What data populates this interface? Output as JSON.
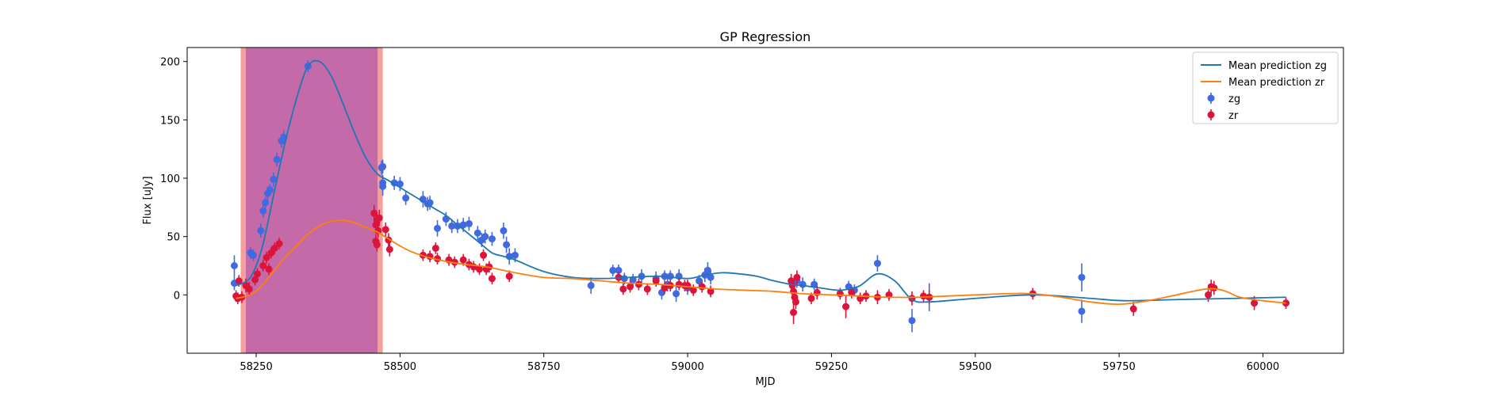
{
  "chart_data": {
    "type": "scatter",
    "title": "GP Regression",
    "xlabel": "MJD",
    "ylabel": "Flux [uJy]",
    "xlim": [
      58130,
      60140
    ],
    "ylim": [
      -50,
      212
    ],
    "xticks": [
      58250,
      58500,
      58750,
      59000,
      59250,
      59500,
      59750,
      60000
    ],
    "yticks": [
      0,
      50,
      100,
      150,
      200
    ],
    "legend_position": "top-right",
    "shaded_regions": [
      {
        "x0": 58223,
        "x1": 58470,
        "color": "#f4a09a"
      },
      {
        "x0": 58232,
        "x1": 58461,
        "color": "#c46aa8"
      }
    ],
    "series": [
      {
        "name": "Mean prediction zg",
        "kind": "line",
        "color": "#1f77b4",
        "x": [
          58215,
          58240,
          58260,
          58280,
          58300,
          58320,
          58340,
          58360,
          58380,
          58400,
          58420,
          58440,
          58460,
          58480,
          58500,
          58520,
          58540,
          58560,
          58580,
          58600,
          58620,
          58640,
          58660,
          58680,
          58700,
          58750,
          58800,
          58850,
          58900,
          58950,
          59000,
          59030,
          59060,
          59090,
          59120,
          59150,
          59180,
          59200,
          59230,
          59260,
          59280,
          59300,
          59330,
          59360,
          59390,
          59420,
          59500,
          59600,
          59700,
          59760,
          59850,
          59950,
          60040
        ],
        "y": [
          8,
          15,
          40,
          85,
          130,
          168,
          196,
          200,
          188,
          165,
          140,
          118,
          104,
          98,
          92,
          86,
          80,
          74,
          68,
          60,
          52,
          44,
          36,
          33,
          30,
          20,
          15,
          14,
          15,
          16,
          14,
          17,
          19,
          18,
          16,
          12,
          9,
          8,
          6,
          4,
          5,
          8,
          18,
          12,
          -4,
          -6,
          -3,
          0,
          -3,
          -5,
          -4,
          -3,
          -2
        ]
      },
      {
        "name": "Mean prediction zr",
        "kind": "line",
        "color": "#ff7f0e",
        "x": [
          58215,
          58240,
          58260,
          58280,
          58300,
          58320,
          58340,
          58360,
          58380,
          58400,
          58420,
          58440,
          58460,
          58480,
          58500,
          58520,
          58550,
          58600,
          58650,
          58700,
          58750,
          58800,
          58850,
          58900,
          58950,
          59000,
          59050,
          59100,
          59150,
          59200,
          59250,
          59300,
          59350,
          59400,
          59450,
          59500,
          59550,
          59600,
          59650,
          59700,
          59750,
          59800,
          59850,
          59900,
          59930,
          59960,
          60000,
          60040
        ],
        "y": [
          -3,
          0,
          8,
          20,
          32,
          42,
          52,
          59,
          63,
          64,
          62,
          58,
          54,
          48,
          42,
          37,
          32,
          27,
          24,
          19,
          15,
          14,
          12,
          10,
          9,
          7,
          5,
          4,
          3,
          1,
          0,
          -1,
          -2,
          -2,
          -1,
          0,
          1,
          1,
          -2,
          -6,
          -8,
          -5,
          0,
          5,
          4,
          -2,
          -5,
          -7
        ]
      },
      {
        "name": "zg",
        "kind": "errorbar",
        "color": "#4169e1",
        "points": [
          [
            58212,
            25,
            9
          ],
          [
            58212,
            10,
            6
          ],
          [
            58240,
            36,
            5
          ],
          [
            58245,
            34,
            5
          ],
          [
            58258,
            55,
            6
          ],
          [
            58262,
            72,
            6
          ],
          [
            58266,
            79,
            5
          ],
          [
            58270,
            87,
            6
          ],
          [
            58274,
            90,
            5
          ],
          [
            58280,
            99,
            6
          ],
          [
            58286,
            116,
            6
          ],
          [
            58294,
            132,
            6
          ],
          [
            58298,
            135,
            6
          ],
          [
            58340,
            196,
            5
          ],
          [
            58468,
            109,
            6
          ],
          [
            58470,
            110,
            6
          ],
          [
            58470,
            96,
            7
          ],
          [
            58470,
            93,
            8
          ],
          [
            58490,
            96,
            6
          ],
          [
            58500,
            95,
            6
          ],
          [
            58510,
            83,
            6
          ],
          [
            58540,
            82,
            7
          ],
          [
            58548,
            78,
            6
          ],
          [
            58552,
            79,
            6
          ],
          [
            58565,
            57,
            7
          ],
          [
            58580,
            65,
            6
          ],
          [
            58590,
            59,
            6
          ],
          [
            58600,
            59,
            6
          ],
          [
            58610,
            60,
            6
          ],
          [
            58620,
            61,
            6
          ],
          [
            58635,
            53,
            6
          ],
          [
            58642,
            47,
            6
          ],
          [
            58648,
            50,
            6
          ],
          [
            58660,
            48,
            6
          ],
          [
            58680,
            55,
            7
          ],
          [
            58685,
            43,
            7
          ],
          [
            58690,
            33,
            7
          ],
          [
            58700,
            34,
            6
          ],
          [
            58832,
            8,
            7
          ],
          [
            58870,
            21,
            5
          ],
          [
            58880,
            21,
            5
          ],
          [
            58890,
            14,
            5
          ],
          [
            58905,
            13,
            5
          ],
          [
            58920,
            16,
            6
          ],
          [
            58945,
            14,
            6
          ],
          [
            58955,
            2,
            6
          ],
          [
            58960,
            16,
            5
          ],
          [
            58965,
            9,
            6
          ],
          [
            58970,
            16,
            5
          ],
          [
            58980,
            1,
            7
          ],
          [
            58985,
            16,
            6
          ],
          [
            59000,
            6,
            6
          ],
          [
            59020,
            12,
            5
          ],
          [
            59030,
            17,
            6
          ],
          [
            59035,
            21,
            7
          ],
          [
            59040,
            15,
            6
          ],
          [
            59190,
            12,
            6
          ],
          [
            59200,
            9,
            6
          ],
          [
            59220,
            9,
            5
          ],
          [
            59280,
            7,
            5
          ],
          [
            59290,
            4,
            5
          ],
          [
            59330,
            27,
            7
          ],
          [
            59390,
            -22,
            10
          ],
          [
            59420,
            -2,
            12
          ],
          [
            59685,
            15,
            12
          ],
          [
            59685,
            -14,
            10
          ]
        ]
      },
      {
        "name": "zr",
        "kind": "errorbar",
        "color": "#dc143c",
        "points": [
          [
            58215,
            -1,
            5
          ],
          [
            58218,
            -3,
            5
          ],
          [
            58220,
            12,
            5
          ],
          [
            58225,
            -2,
            5
          ],
          [
            58232,
            8,
            6
          ],
          [
            58238,
            5,
            6
          ],
          [
            58248,
            13,
            5
          ],
          [
            58252,
            18,
            5
          ],
          [
            58262,
            25,
            5
          ],
          [
            58268,
            32,
            5
          ],
          [
            58272,
            22,
            5
          ],
          [
            58276,
            36,
            5
          ],
          [
            58282,
            40,
            5
          ],
          [
            58290,
            44,
            5
          ],
          [
            58455,
            70,
            7
          ],
          [
            58460,
            64,
            7
          ],
          [
            58458,
            60,
            7
          ],
          [
            58462,
            55,
            6
          ],
          [
            58458,
            46,
            6
          ],
          [
            58460,
            43,
            6
          ],
          [
            58464,
            66,
            7
          ],
          [
            58475,
            56,
            6
          ],
          [
            58480,
            47,
            6
          ],
          [
            58482,
            39,
            6
          ],
          [
            58540,
            34,
            5
          ],
          [
            58552,
            33,
            5
          ],
          [
            58562,
            40,
            5
          ],
          [
            58565,
            31,
            5
          ],
          [
            58585,
            30,
            5
          ],
          [
            58595,
            28,
            5
          ],
          [
            58610,
            30,
            5
          ],
          [
            58620,
            26,
            5
          ],
          [
            58628,
            24,
            5
          ],
          [
            58638,
            22,
            5
          ],
          [
            58645,
            34,
            5
          ],
          [
            58650,
            22,
            5
          ],
          [
            58655,
            24,
            5
          ],
          [
            58660,
            14,
            5
          ],
          [
            58690,
            16,
            5
          ],
          [
            58880,
            15,
            5
          ],
          [
            58888,
            5,
            5
          ],
          [
            58900,
            7,
            5
          ],
          [
            58915,
            9,
            5
          ],
          [
            58930,
            5,
            5
          ],
          [
            58945,
            12,
            5
          ],
          [
            58960,
            6,
            5
          ],
          [
            58970,
            8,
            5
          ],
          [
            58985,
            9,
            5
          ],
          [
            58995,
            8,
            5
          ],
          [
            59000,
            8,
            5
          ],
          [
            59010,
            4,
            5
          ],
          [
            59025,
            7,
            5
          ],
          [
            59040,
            3,
            5
          ],
          [
            59180,
            12,
            6
          ],
          [
            59182,
            8,
            6
          ],
          [
            59184,
            3,
            6
          ],
          [
            59186,
            -2,
            6
          ],
          [
            59188,
            -6,
            6
          ],
          [
            59184,
            -15,
            10
          ],
          [
            59190,
            15,
            6
          ],
          [
            59215,
            -3,
            5
          ],
          [
            59225,
            2,
            6
          ],
          [
            59265,
            1,
            5
          ],
          [
            59275,
            -10,
            10
          ],
          [
            59285,
            2,
            5
          ],
          [
            59300,
            -3,
            5
          ],
          [
            59310,
            -1,
            5
          ],
          [
            59330,
            -2,
            6
          ],
          [
            59350,
            0,
            5
          ],
          [
            59390,
            -3,
            6
          ],
          [
            59410,
            -1,
            5
          ],
          [
            59420,
            -2,
            6
          ],
          [
            59600,
            1,
            5
          ],
          [
            59775,
            -12,
            6
          ],
          [
            59905,
            0,
            6
          ],
          [
            59910,
            7,
            6
          ],
          [
            59915,
            6,
            6
          ],
          [
            59985,
            -7,
            6
          ],
          [
            60040,
            -7,
            5
          ]
        ]
      }
    ]
  }
}
